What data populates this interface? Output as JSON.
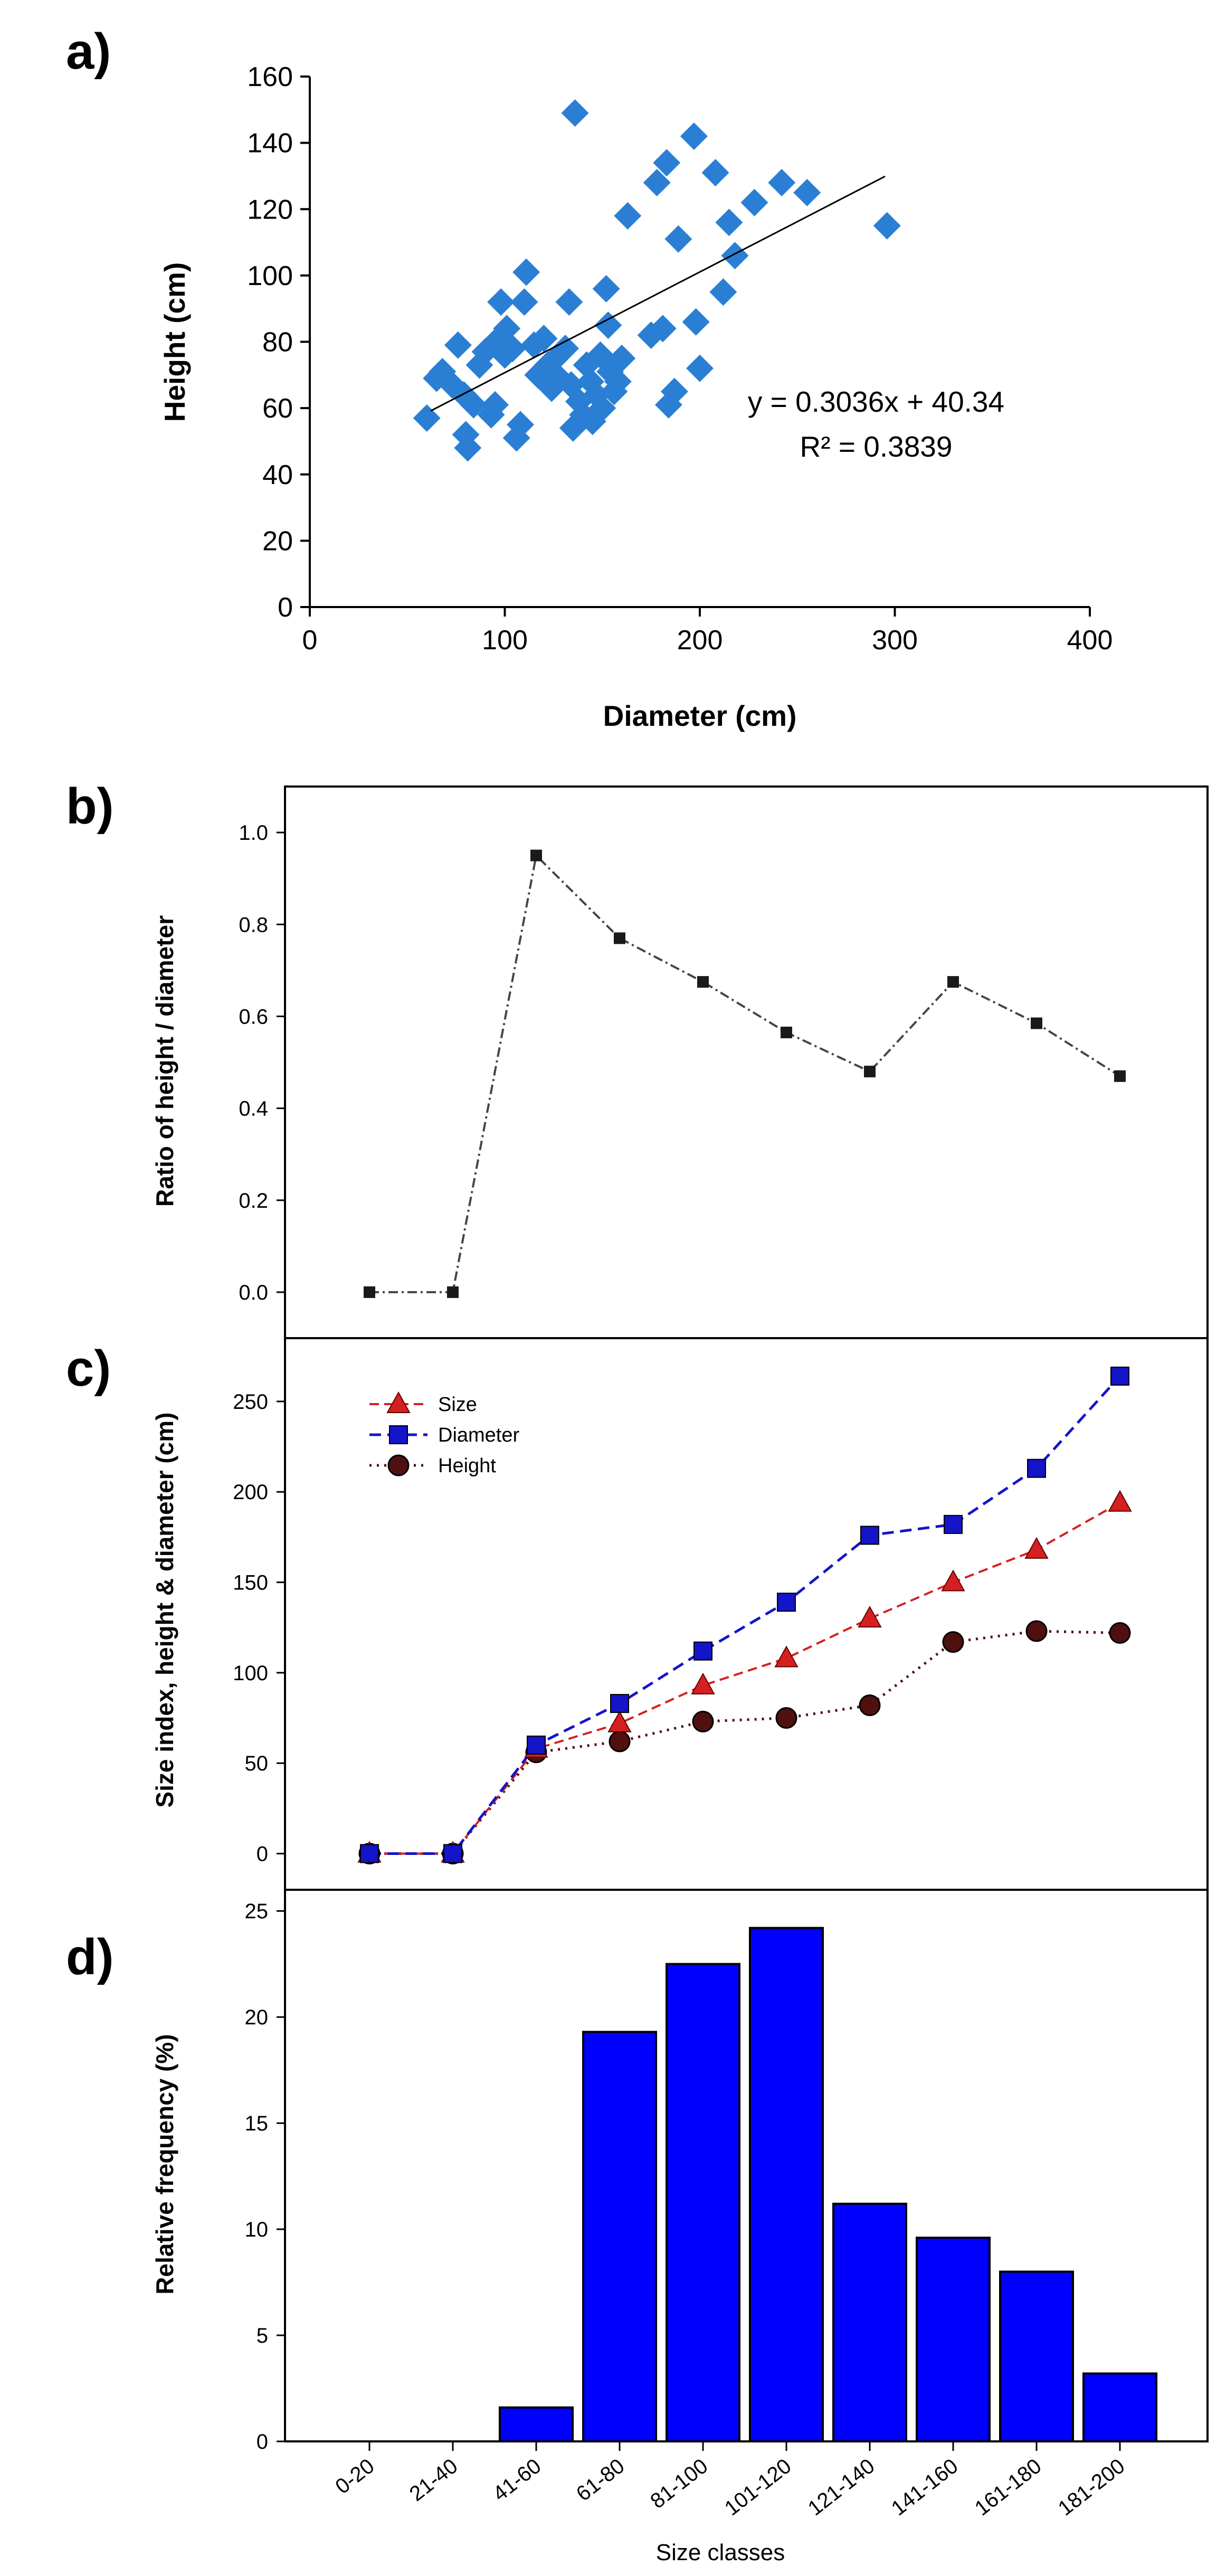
{
  "panels": {
    "a": "a)",
    "b": "b)",
    "c": "c)",
    "d": "d)"
  },
  "colors": {
    "scatter": "#2a7fd4",
    "line_b": "#444444",
    "size": "#d42020",
    "diameter": "#1414c8",
    "height": "#501010",
    "bars": "#0000ff"
  },
  "chart_data": [
    {
      "id": "a",
      "type": "scatter",
      "xlabel": "Diameter (cm)",
      "ylabel": "Height (cm)",
      "xlim": [
        0,
        400
      ],
      "ylim": [
        0,
        160
      ],
      "xticks": [
        0,
        100,
        200,
        300,
        400
      ],
      "yticks": [
        0,
        20,
        40,
        60,
        80,
        100,
        120,
        140,
        160
      ],
      "equation": "y = 0.3036x + 40.34",
      "r2_text": "R² = 0.3839",
      "trendline": {
        "slope": 0.3036,
        "intercept": 40.34,
        "x_range": [
          62,
          295
        ]
      },
      "points": [
        [
          60,
          57
        ],
        [
          65,
          69
        ],
        [
          68,
          71
        ],
        [
          73,
          67
        ],
        [
          76,
          79
        ],
        [
          79,
          64
        ],
        [
          80,
          52
        ],
        [
          81,
          48
        ],
        [
          84,
          61
        ],
        [
          87,
          73
        ],
        [
          90,
          77
        ],
        [
          93,
          58
        ],
        [
          95,
          61
        ],
        [
          97,
          81
        ],
        [
          98,
          92
        ],
        [
          100,
          76
        ],
        [
          101,
          84
        ],
        [
          104,
          78
        ],
        [
          106,
          51
        ],
        [
          108,
          55
        ],
        [
          110,
          92
        ],
        [
          111,
          101
        ],
        [
          115,
          79
        ],
        [
          117,
          70
        ],
        [
          120,
          81
        ],
        [
          122,
          73
        ],
        [
          124,
          66
        ],
        [
          126,
          75
        ],
        [
          128,
          69
        ],
        [
          131,
          78
        ],
        [
          133,
          92
        ],
        [
          134,
          67
        ],
        [
          135,
          54
        ],
        [
          136,
          149
        ],
        [
          138,
          62
        ],
        [
          140,
          58
        ],
        [
          142,
          73
        ],
        [
          144,
          68
        ],
        [
          145,
          56
        ],
        [
          147,
          64
        ],
        [
          149,
          76
        ],
        [
          150,
          60
        ],
        [
          152,
          96
        ],
        [
          153,
          85
        ],
        [
          154,
          71
        ],
        [
          156,
          65
        ],
        [
          158,
          68
        ],
        [
          160,
          75
        ],
        [
          163,
          118
        ],
        [
          175,
          82
        ],
        [
          178,
          128
        ],
        [
          181,
          84
        ],
        [
          183,
          134
        ],
        [
          184,
          61
        ],
        [
          187,
          65
        ],
        [
          189,
          111
        ],
        [
          197,
          142
        ],
        [
          198,
          86
        ],
        [
          200,
          72
        ],
        [
          208,
          131
        ],
        [
          212,
          95
        ],
        [
          215,
          116
        ],
        [
          218,
          106
        ],
        [
          228,
          122
        ],
        [
          242,
          128
        ],
        [
          255,
          125
        ],
        [
          296,
          115
        ]
      ]
    },
    {
      "id": "b",
      "type": "line",
      "ylabel": "Ratio of height / diameter",
      "ylim": [
        -0.1,
        1.1
      ],
      "yticks": [
        "0.0",
        "0.2",
        "0.4",
        "0.6",
        "0.8",
        "1.0"
      ],
      "values": [
        0.0,
        0.0,
        0.95,
        0.77,
        0.675,
        0.565,
        0.48,
        0.675,
        0.585,
        0.47
      ]
    },
    {
      "id": "c",
      "type": "line",
      "ylabel": "Size index, height & diameter (cm)",
      "ylim": [
        -20,
        285
      ],
      "yticks": [
        "0",
        "50",
        "100",
        "150",
        "200",
        "250"
      ],
      "series": [
        {
          "name": "Size",
          "marker": "triangle",
          "values": [
            0,
            0,
            58,
            72,
            93,
            108,
            130,
            150,
            168,
            194
          ]
        },
        {
          "name": "Diameter",
          "marker": "square",
          "values": [
            0,
            0,
            60,
            83,
            112,
            139,
            176,
            182,
            213,
            264
          ]
        },
        {
          "name": "Height",
          "marker": "circle",
          "values": [
            0,
            0,
            56,
            62,
            73,
            75,
            82,
            117,
            123,
            122
          ]
        }
      ]
    },
    {
      "id": "d",
      "type": "bar",
      "xlabel": "Size classes",
      "ylabel": "Relative frequency (%)",
      "ylim": [
        0,
        26
      ],
      "yticks": [
        "0",
        "5",
        "10",
        "15",
        "20",
        "25"
      ],
      "categories": [
        "0-20",
        "21-40",
        "41-60",
        "61-80",
        "81-100",
        "101-120",
        "121-140",
        "141-160",
        "161-180",
        "181-200"
      ],
      "values": [
        0,
        0,
        1.6,
        19.3,
        22.5,
        24.2,
        11.2,
        9.6,
        8.0,
        3.2
      ]
    }
  ]
}
